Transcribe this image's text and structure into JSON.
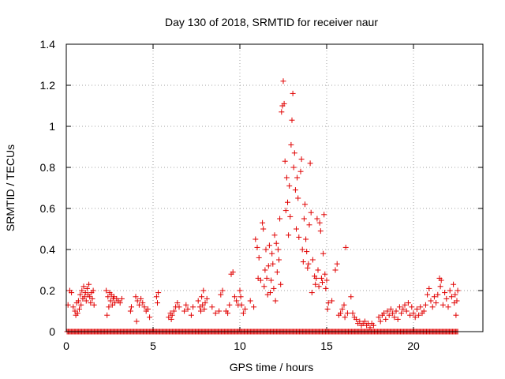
{
  "chart_data": {
    "type": "scatter",
    "title": "Day 130 of 2018, SRMTID for receiver naur",
    "xlabel": "GPS time / hours",
    "ylabel": "SRMTID / TECUs",
    "xlim": [
      0,
      24
    ],
    "ylim": [
      0,
      1.4
    ],
    "xticks": [
      0,
      5,
      10,
      15,
      20
    ],
    "xtick_labels": [
      "0",
      "5",
      "10",
      "15",
      "20"
    ],
    "yticks": [
      0,
      0.2,
      0.4,
      0.6,
      0.8,
      1,
      1.2,
      1.4
    ],
    "ytick_labels": [
      "0",
      "0.2",
      "0.4",
      "0.6",
      "0.8",
      "1",
      "1.2",
      "1.4"
    ],
    "grid": true,
    "marker": "+",
    "color": "#e00000",
    "series": [
      {
        "name": "SRMTID",
        "points": [
          [
            0.1,
            0.13
          ],
          [
            0.2,
            0.2
          ],
          [
            0.3,
            0.19
          ],
          [
            0.4,
            0.12
          ],
          [
            0.5,
            0.1
          ],
          [
            0.55,
            0.08
          ],
          [
            0.6,
            0.14
          ],
          [
            0.65,
            0.09
          ],
          [
            0.7,
            0.15
          ],
          [
            0.75,
            0.11
          ],
          [
            0.8,
            0.18
          ],
          [
            0.85,
            0.13
          ],
          [
            0.9,
            0.2
          ],
          [
            0.95,
            0.16
          ],
          [
            1.0,
            0.22
          ],
          [
            1.05,
            0.17
          ],
          [
            1.1,
            0.19
          ],
          [
            1.15,
            0.15
          ],
          [
            1.2,
            0.21
          ],
          [
            1.25,
            0.18
          ],
          [
            1.3,
            0.23
          ],
          [
            1.35,
            0.17
          ],
          [
            1.4,
            0.14
          ],
          [
            1.45,
            0.19
          ],
          [
            1.5,
            0.16
          ],
          [
            1.55,
            0.2
          ],
          [
            1.6,
            0.13
          ],
          [
            2.3,
            0.2
          ],
          [
            2.35,
            0.08
          ],
          [
            2.4,
            0.17
          ],
          [
            2.45,
            0.12
          ],
          [
            2.5,
            0.19
          ],
          [
            2.55,
            0.15
          ],
          [
            2.6,
            0.18
          ],
          [
            2.65,
            0.13
          ],
          [
            2.7,
            0.16
          ],
          [
            2.75,
            0.17
          ],
          [
            2.8,
            0.14
          ],
          [
            2.9,
            0.16
          ],
          [
            3.0,
            0.15
          ],
          [
            3.1,
            0.14
          ],
          [
            3.2,
            0.16
          ],
          [
            3.7,
            0.1
          ],
          [
            3.75,
            0.12
          ],
          [
            4.0,
            0.17
          ],
          [
            4.05,
            0.05
          ],
          [
            4.1,
            0.15
          ],
          [
            4.2,
            0.13
          ],
          [
            4.3,
            0.16
          ],
          [
            4.4,
            0.14
          ],
          [
            4.5,
            0.12
          ],
          [
            4.6,
            0.1
          ],
          [
            4.7,
            0.11
          ],
          [
            4.8,
            0.07
          ],
          [
            5.2,
            0.17
          ],
          [
            5.25,
            0.14
          ],
          [
            5.3,
            0.19
          ],
          [
            5.9,
            0.07
          ],
          [
            6.0,
            0.09
          ],
          [
            6.05,
            0.06
          ],
          [
            6.1,
            0.08
          ],
          [
            6.2,
            0.1
          ],
          [
            6.3,
            0.12
          ],
          [
            6.4,
            0.14
          ],
          [
            6.5,
            0.12
          ],
          [
            6.8,
            0.1
          ],
          [
            6.9,
            0.13
          ],
          [
            7.0,
            0.11
          ],
          [
            7.2,
            0.08
          ],
          [
            7.3,
            0.12
          ],
          [
            7.6,
            0.15
          ],
          [
            7.7,
            0.12
          ],
          [
            7.75,
            0.1
          ],
          [
            7.8,
            0.17
          ],
          [
            7.85,
            0.13
          ],
          [
            7.9,
            0.2
          ],
          [
            7.95,
            0.11
          ],
          [
            8.0,
            0.14
          ],
          [
            8.1,
            0.16
          ],
          [
            8.4,
            0.12
          ],
          [
            8.6,
            0.09
          ],
          [
            8.8,
            0.1
          ],
          [
            8.9,
            0.18
          ],
          [
            9.0,
            0.2
          ],
          [
            9.2,
            0.1
          ],
          [
            9.3,
            0.09
          ],
          [
            9.4,
            0.13
          ],
          [
            9.5,
            0.28
          ],
          [
            9.6,
            0.29
          ],
          [
            9.7,
            0.17
          ],
          [
            9.8,
            0.15
          ],
          [
            9.9,
            0.13
          ],
          [
            10.0,
            0.2
          ],
          [
            10.05,
            0.17
          ],
          [
            10.1,
            0.13
          ],
          [
            10.2,
            0.09
          ],
          [
            10.3,
            0.11
          ],
          [
            10.6,
            0.15
          ],
          [
            10.8,
            0.12
          ],
          [
            10.9,
            0.45
          ],
          [
            11.0,
            0.41
          ],
          [
            11.05,
            0.26
          ],
          [
            11.1,
            0.36
          ],
          [
            11.2,
            0.25
          ],
          [
            11.3,
            0.53
          ],
          [
            11.35,
            0.5
          ],
          [
            11.4,
            0.22
          ],
          [
            11.45,
            0.3
          ],
          [
            11.5,
            0.4
          ],
          [
            11.55,
            0.26
          ],
          [
            11.6,
            0.18
          ],
          [
            11.65,
            0.32
          ],
          [
            11.7,
            0.42
          ],
          [
            11.75,
            0.19
          ],
          [
            11.8,
            0.25
          ],
          [
            11.85,
            0.38
          ],
          [
            11.9,
            0.33
          ],
          [
            11.95,
            0.21
          ],
          [
            12.0,
            0.47
          ],
          [
            12.05,
            0.15
          ],
          [
            12.1,
            0.43
          ],
          [
            12.15,
            0.29
          ],
          [
            12.2,
            0.4
          ],
          [
            12.25,
            0.35
          ],
          [
            12.3,
            0.55
          ],
          [
            12.35,
            0.23
          ],
          [
            12.4,
            1.07
          ],
          [
            12.45,
            1.1
          ],
          [
            12.5,
            1.22
          ],
          [
            12.55,
            1.11
          ],
          [
            12.6,
            0.83
          ],
          [
            12.65,
            0.59
          ],
          [
            12.7,
            0.75
          ],
          [
            12.75,
            0.63
          ],
          [
            12.8,
            0.47
          ],
          [
            12.85,
            0.71
          ],
          [
            12.9,
            0.56
          ],
          [
            12.95,
            0.91
          ],
          [
            13.0,
            1.03
          ],
          [
            13.05,
            1.16
          ],
          [
            13.1,
            0.8
          ],
          [
            13.15,
            0.87
          ],
          [
            13.2,
            0.69
          ],
          [
            13.25,
            0.5
          ],
          [
            13.3,
            0.75
          ],
          [
            13.35,
            0.65
          ],
          [
            13.4,
            0.46
          ],
          [
            13.5,
            0.78
          ],
          [
            13.55,
            0.84
          ],
          [
            13.6,
            0.4
          ],
          [
            13.65,
            0.34
          ],
          [
            13.7,
            0.55
          ],
          [
            13.75,
            0.62
          ],
          [
            13.8,
            0.45
          ],
          [
            13.85,
            0.39
          ],
          [
            13.9,
            0.31
          ],
          [
            13.95,
            0.33
          ],
          [
            14.0,
            0.52
          ],
          [
            14.05,
            0.82
          ],
          [
            14.1,
            0.58
          ],
          [
            14.15,
            0.19
          ],
          [
            14.2,
            0.35
          ],
          [
            14.3,
            0.27
          ],
          [
            14.35,
            0.23
          ],
          [
            14.4,
            0.26
          ],
          [
            14.45,
            0.55
          ],
          [
            14.5,
            0.3
          ],
          [
            14.55,
            0.22
          ],
          [
            14.6,
            0.53
          ],
          [
            14.65,
            0.49
          ],
          [
            14.7,
            0.26
          ],
          [
            14.75,
            0.24
          ],
          [
            14.8,
            0.38
          ],
          [
            14.85,
            0.57
          ],
          [
            14.9,
            0.28
          ],
          [
            14.95,
            0.21
          ],
          [
            15.0,
            0.25
          ],
          [
            15.05,
            0.11
          ],
          [
            15.1,
            0.14
          ],
          [
            15.3,
            0.15
          ],
          [
            15.5,
            0.3
          ],
          [
            15.6,
            0.33
          ],
          [
            15.7,
            0.08
          ],
          [
            15.8,
            0.09
          ],
          [
            15.9,
            0.11
          ],
          [
            16.0,
            0.13
          ],
          [
            16.05,
            0.07
          ],
          [
            16.1,
            0.41
          ],
          [
            16.2,
            0.09
          ],
          [
            16.4,
            0.17
          ],
          [
            16.5,
            0.09
          ],
          [
            16.6,
            0.07
          ],
          [
            16.7,
            0.06
          ],
          [
            16.8,
            0.04
          ],
          [
            16.9,
            0.05
          ],
          [
            17.0,
            0.03
          ],
          [
            17.1,
            0.04
          ],
          [
            17.2,
            0.05
          ],
          [
            17.3,
            0.03
          ],
          [
            17.4,
            0.04
          ],
          [
            17.5,
            0.02
          ],
          [
            17.6,
            0.04
          ],
          [
            17.7,
            0.03
          ],
          [
            18.0,
            0.07
          ],
          [
            18.1,
            0.05
          ],
          [
            18.2,
            0.08
          ],
          [
            18.3,
            0.09
          ],
          [
            18.4,
            0.06
          ],
          [
            18.5,
            0.1
          ],
          [
            18.6,
            0.08
          ],
          [
            18.7,
            0.11
          ],
          [
            18.8,
            0.09
          ],
          [
            18.9,
            0.07
          ],
          [
            19.0,
            0.1
          ],
          [
            19.1,
            0.06
          ],
          [
            19.2,
            0.12
          ],
          [
            19.3,
            0.09
          ],
          [
            19.4,
            0.11
          ],
          [
            19.5,
            0.13
          ],
          [
            19.6,
            0.1
          ],
          [
            19.7,
            0.14
          ],
          [
            19.8,
            0.08
          ],
          [
            19.9,
            0.12
          ],
          [
            20.0,
            0.09
          ],
          [
            20.1,
            0.07
          ],
          [
            20.2,
            0.11
          ],
          [
            20.3,
            0.08
          ],
          [
            20.4,
            0.12
          ],
          [
            20.5,
            0.09
          ],
          [
            20.6,
            0.1
          ],
          [
            20.7,
            0.13
          ],
          [
            20.8,
            0.18
          ],
          [
            20.9,
            0.21
          ],
          [
            21.0,
            0.15
          ],
          [
            21.1,
            0.12
          ],
          [
            21.2,
            0.17
          ],
          [
            21.3,
            0.14
          ],
          [
            21.4,
            0.18
          ],
          [
            21.5,
            0.26
          ],
          [
            21.55,
            0.22
          ],
          [
            21.6,
            0.25
          ],
          [
            21.7,
            0.13
          ],
          [
            21.8,
            0.19
          ],
          [
            21.9,
            0.16
          ],
          [
            22.0,
            0.12
          ],
          [
            22.1,
            0.2
          ],
          [
            22.2,
            0.17
          ],
          [
            22.3,
            0.23
          ],
          [
            22.35,
            0.14
          ],
          [
            22.4,
            0.18
          ],
          [
            22.45,
            0.08
          ],
          [
            22.5,
            0.15
          ],
          [
            22.55,
            0.2
          ]
        ],
        "zero_baseline_range": [
          0.05,
          22.6
        ]
      }
    ]
  }
}
